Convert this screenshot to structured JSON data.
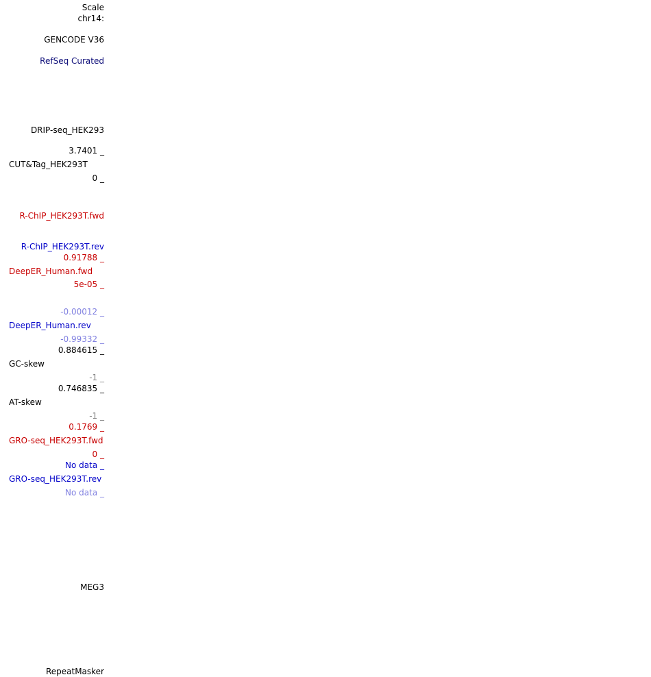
{
  "left_labels": {
    "scale": "Scale",
    "chrom": "chr14:",
    "gencode": "GENCODE V36",
    "refseq": "RefSeq Curated",
    "drip": "DRIP-seq_HEK293",
    "cuttag_max": "3.7401 _",
    "cuttag_name": "CUT&Tag_HEK293T",
    "cuttag_min": "0 _",
    "rchip_fwd": "R-ChIP_HEK293T.fwd",
    "rchip_rev": "R-ChIP_HEK293T.rev",
    "deeper_fwd_max": "0.91788 _",
    "deeper_fwd_name": "DeepER_Human.fwd",
    "deeper_fwd_min": "5e-05 _",
    "deeper_rev_max": "-0.00012 _",
    "deeper_rev_name": "DeepER_Human.rev",
    "deeper_rev_min": "-0.99332 _",
    "gc_max": "0.884615 _",
    "gc_name": "GC-skew",
    "gc_min": "-1 _",
    "at_max": "0.746835 _",
    "at_name": "AT-skew",
    "at_min": "-1 _",
    "gro_fwd_max": "0.1769 _",
    "gro_fwd_name": "GRO-seq_HEK293T.fwd",
    "gro_fwd_min": "0 _",
    "gro_rev_max": "No data _",
    "gro_rev_name": "GRO-seq_HEK293T.rev",
    "gro_rev_min": "No data _",
    "meg3": "MEG3",
    "repeatmasker": "RepeatMasker"
  },
  "colors": {
    "black": "#000000",
    "navy": "#0c0c78",
    "blue": "#0000c8",
    "red": "#c80000",
    "light_blue": "#8080e0",
    "gray": "#808080"
  }
}
